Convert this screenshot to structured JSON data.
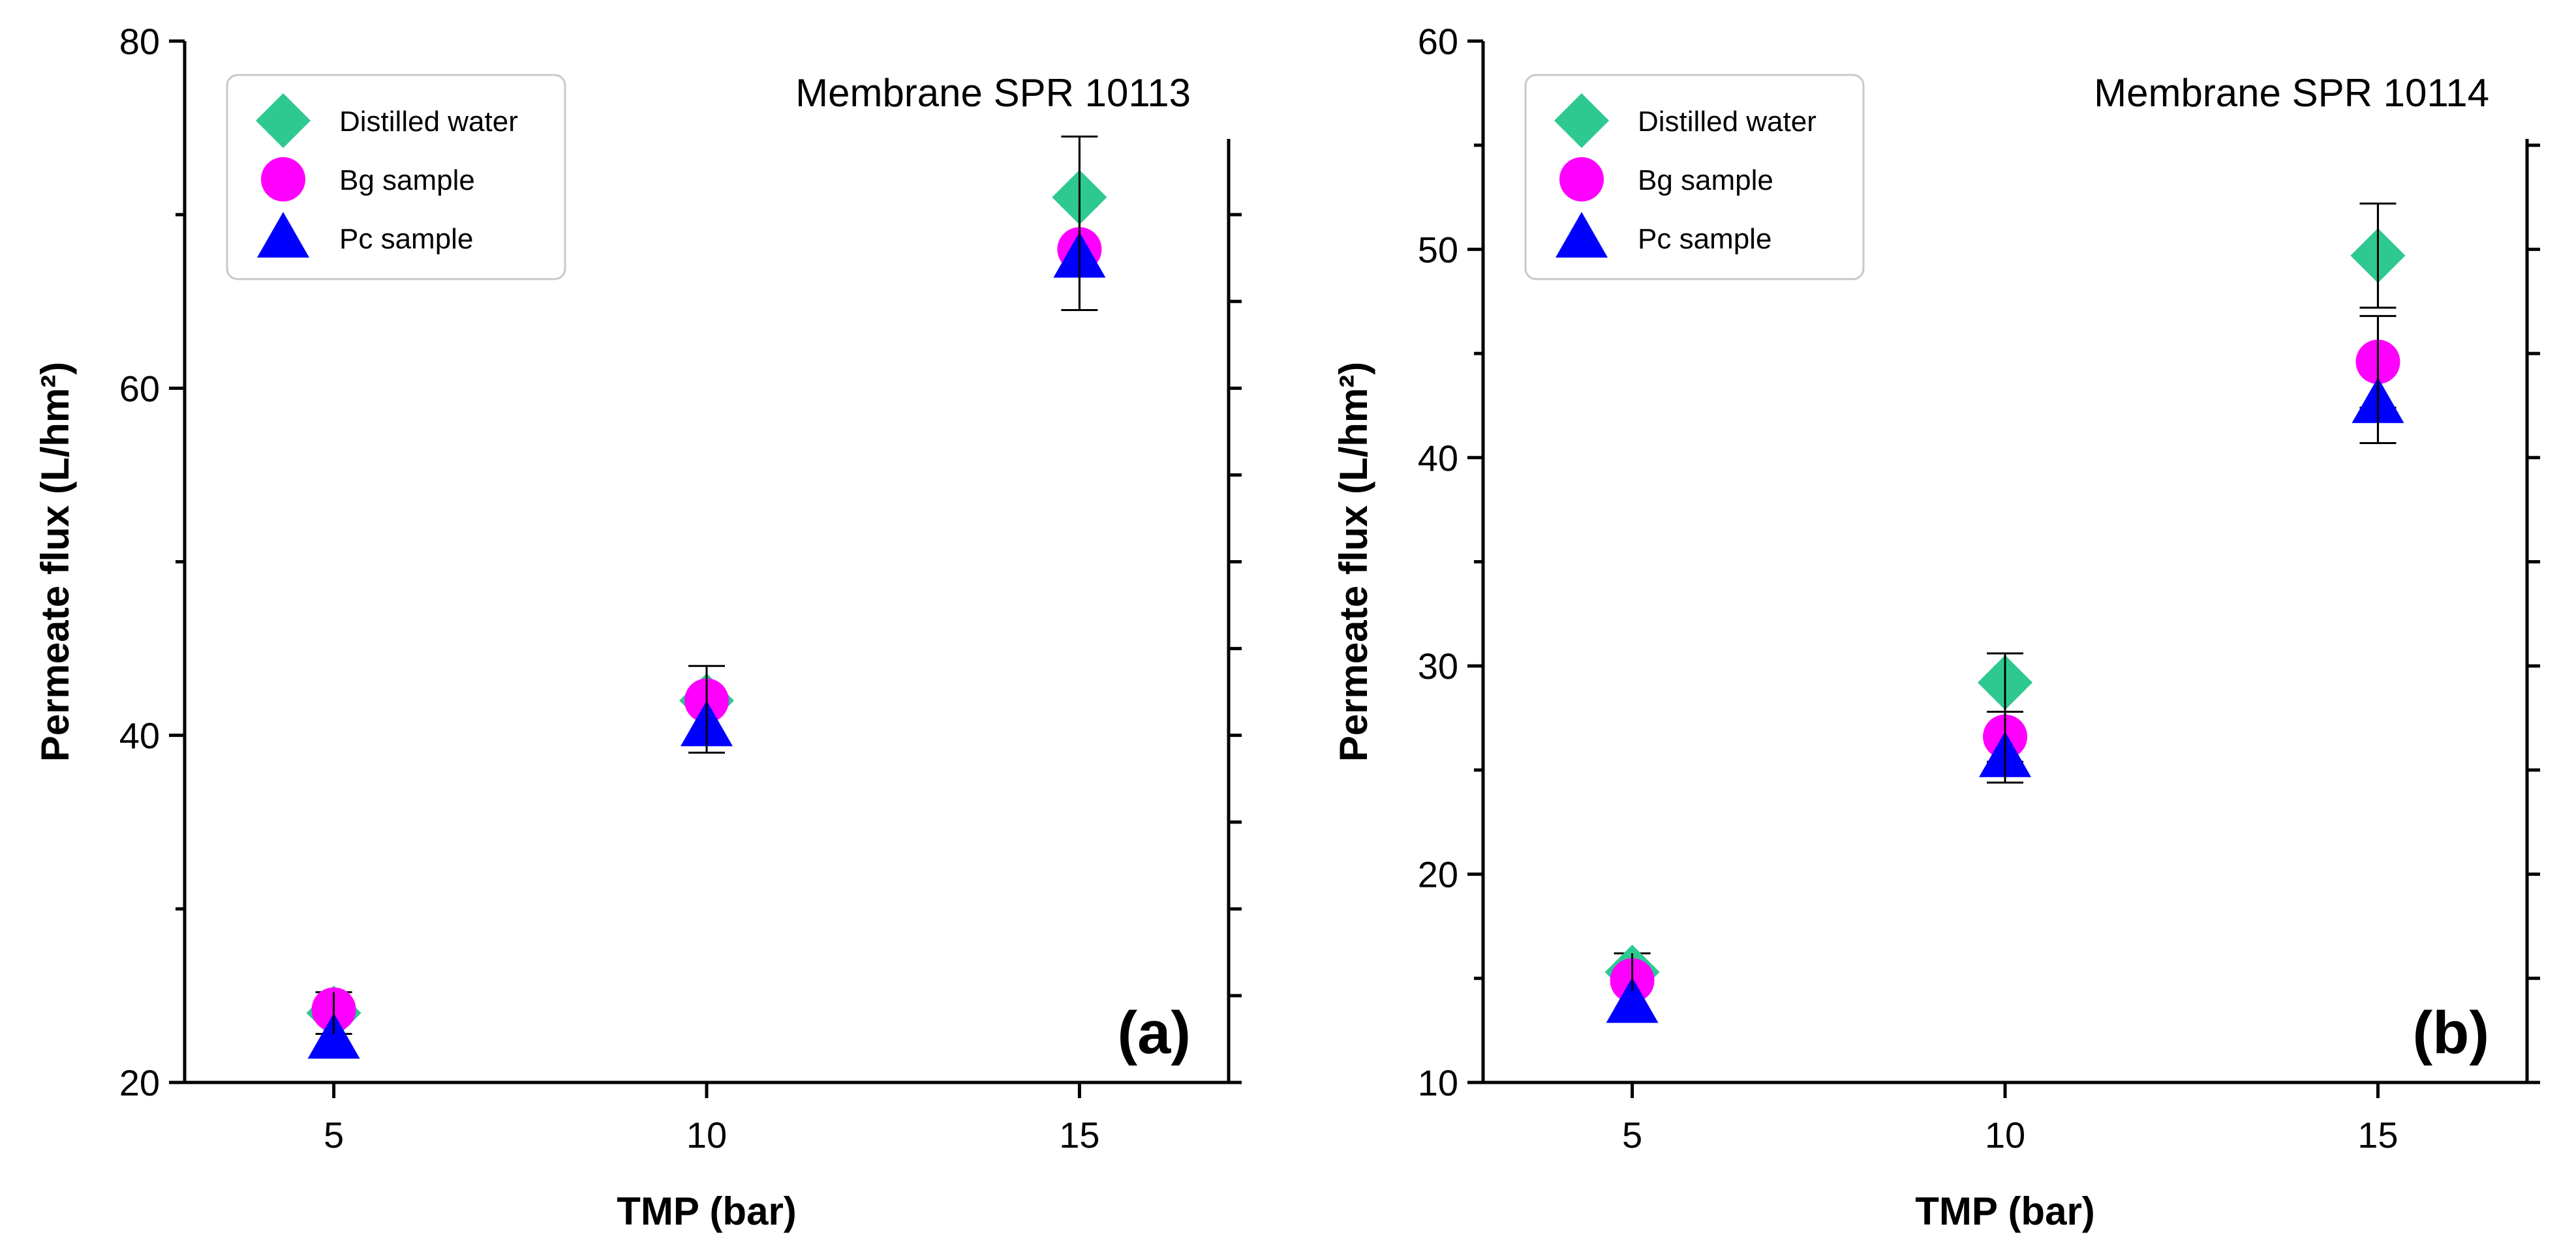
{
  "chart_data": [
    {
      "type": "scatter",
      "panel_label": "(a)",
      "annotation": "Membrane SPR 10113",
      "xlabel": "TMP (bar)",
      "ylabel": "Permeate flux (L/hm²)",
      "xlim": [
        3,
        17
      ],
      "ylim": [
        20,
        80
      ],
      "xticks": [
        5,
        10,
        15
      ],
      "yticks": [
        20,
        40,
        60,
        80
      ],
      "yminor": [
        30,
        50,
        70
      ],
      "right_axis_ticks": [
        20,
        25,
        30,
        35,
        40,
        45,
        50,
        55,
        60,
        65,
        70,
        75,
        80
      ],
      "legend_position": "top-left",
      "x": [
        5,
        10,
        15
      ],
      "series": [
        {
          "name": "Distilled water",
          "marker": "diamond",
          "color": "#2ec990",
          "values": [
            24.0,
            42.0,
            71.0
          ],
          "errors": [
            1.2,
            2.0,
            3.5
          ]
        },
        {
          "name": "Bg sample",
          "marker": "circle",
          "color": "#ff00ff",
          "values": [
            24.2,
            42.0,
            68.0
          ],
          "errors": [
            0,
            0,
            0
          ]
        },
        {
          "name": "Pc sample",
          "marker": "triangle",
          "color": "#0000ff",
          "values": [
            22.5,
            40.5,
            67.5
          ],
          "errors": [
            0,
            1.5,
            3.0
          ]
        }
      ]
    },
    {
      "type": "scatter",
      "panel_label": "(b)",
      "annotation": "Membrane SPR 10114",
      "xlabel": "TMP (bar)",
      "ylabel": "Permeate flux (L/hm²)",
      "xlim": [
        3,
        17
      ],
      "ylim": [
        10,
        60
      ],
      "xticks": [
        5,
        10,
        15
      ],
      "yticks": [
        10,
        20,
        30,
        40,
        50,
        60
      ],
      "yminor": [
        15,
        25,
        35,
        45,
        55
      ],
      "right_axis_ticks": [
        10,
        15,
        20,
        25,
        30,
        35,
        40,
        45,
        50,
        55,
        60
      ],
      "legend_position": "top-left",
      "x": [
        5,
        10,
        15
      ],
      "series": [
        {
          "name": "Distilled water",
          "marker": "diamond",
          "color": "#2ec990",
          "values": [
            15.3,
            29.2,
            49.7
          ],
          "errors": [
            0.9,
            1.4,
            2.5
          ]
        },
        {
          "name": "Bg sample",
          "marker": "circle",
          "color": "#ff00ff",
          "values": [
            14.9,
            26.6,
            44.6
          ],
          "errors": [
            0,
            1.2,
            2.2
          ]
        },
        {
          "name": "Pc sample",
          "marker": "triangle",
          "color": "#0000ff",
          "values": [
            13.8,
            25.6,
            42.6
          ],
          "errors": [
            0,
            1.2,
            1.9
          ]
        }
      ]
    }
  ]
}
